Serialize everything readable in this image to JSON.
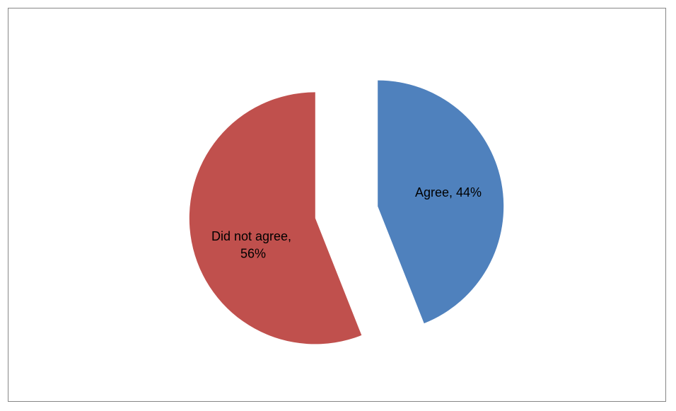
{
  "chart_data": {
    "type": "pie",
    "exploded": true,
    "title": "",
    "legend": "none",
    "slices": [
      {
        "label": "Agree",
        "value": 44,
        "data_label": "Agree, 44%",
        "color": "#4F81BD"
      },
      {
        "label": "Did not agree",
        "value": 56,
        "data_label_lines": [
          "Did not agree,",
          "56%"
        ],
        "color": "#C0504D"
      }
    ]
  }
}
